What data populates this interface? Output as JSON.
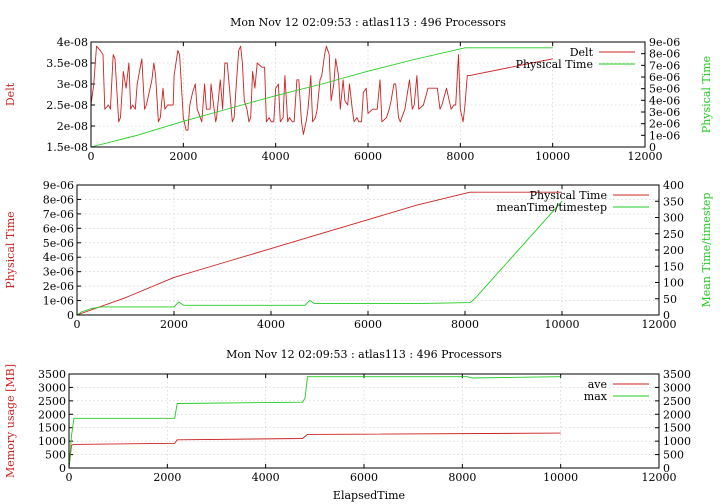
{
  "colors": {
    "red": "#cc2222",
    "green": "#22cc22",
    "grid": "#c8c8c8"
  },
  "chart_data": [
    {
      "type": "line",
      "title": "Mon Nov 12 02:09:53 : atlas113 : 496 Processors",
      "ylabel": "Delt",
      "y2label": "Physical Time",
      "xlim": [
        0,
        12000
      ],
      "ylim": [
        1.5e-08,
        4e-08
      ],
      "y2lim": [
        0,
        9e-06
      ],
      "xticks": [
        "0",
        "2000",
        "4000",
        "6000",
        "8000",
        "10000",
        "12000"
      ],
      "yticks": [
        "1.5e-08",
        "2e-08",
        "2.5e-08",
        "3e-08",
        "3.5e-08",
        "4e-08"
      ],
      "y2ticks": [
        "0",
        "1e-06",
        "2e-06",
        "3e-06",
        "4e-06",
        "5e-06",
        "6e-06",
        "7e-06",
        "8e-06",
        "9e-06"
      ],
      "legend_position": "top-right",
      "series": [
        {
          "name": "Delt",
          "axis": "left",
          "color": "#cc2222",
          "x": [
            0,
            60,
            120,
            200,
            260,
            300,
            380,
            420,
            480,
            520,
            600,
            640,
            700,
            760,
            820,
            860,
            900,
            960,
            1000,
            1100,
            1160,
            1200,
            1280,
            1320,
            1360,
            1400,
            1460,
            1500,
            1560,
            1600,
            1660,
            1700,
            1780,
            1800,
            1880,
            1920,
            2000,
            2060,
            2100,
            2140,
            2200,
            2260,
            2300,
            2400,
            2460,
            2500,
            2580,
            2600,
            2700,
            2720,
            2800,
            2850,
            2900,
            2950,
            3000,
            3060,
            3100,
            3160,
            3200,
            3240,
            3280,
            3320,
            3380,
            3420,
            3460,
            3500,
            3550,
            3600,
            3700,
            3760,
            3800,
            3860,
            3900,
            3960,
            4000,
            4060,
            4100,
            4160,
            4200,
            4260,
            4300,
            4360,
            4400,
            4460,
            4500,
            4560,
            4600,
            4660,
            4700,
            4760,
            4800,
            4860,
            4900,
            4960,
            5000,
            5060,
            5100,
            5160,
            5200,
            5260,
            5300,
            5360,
            5400,
            5460,
            5500,
            5560,
            5600,
            5660,
            5700,
            5760,
            5800,
            5860,
            5900,
            5960,
            6000,
            6100,
            6200,
            6260,
            6300,
            6400,
            6460,
            6500,
            6560,
            6600,
            6660,
            6700,
            6800,
            6900,
            6960,
            7000,
            7060,
            7100,
            7200,
            7300,
            7400,
            7460,
            7500,
            7560,
            7600,
            7700,
            7800,
            7860,
            7900,
            7960,
            8000,
            8060,
            8100,
            8150,
            8200,
            10000
          ],
          "values": [
            2.5e-08,
            3e-08,
            3.9e-08,
            3.8e-08,
            3.7e-08,
            2.4e-08,
            2.5e-08,
            2.4e-08,
            3.7e-08,
            3.6e-08,
            2.1e-08,
            2.2e-08,
            3.3e-08,
            2.9e-08,
            3.5e-08,
            2.4e-08,
            2.5e-08,
            2.4e-08,
            3e-08,
            3.6e-08,
            2.4e-08,
            2.5e-08,
            2.9e-08,
            3.1e-08,
            3.5e-08,
            3.2e-08,
            2.1e-08,
            2.2e-08,
            2.9e-08,
            2.4e-08,
            2.5e-08,
            2.5e-08,
            2.5e-08,
            3.2e-08,
            3.8e-08,
            3.7e-08,
            2.2e-08,
            1.9e-08,
            1.9e-08,
            2.5e-08,
            2.8e-08,
            3e-08,
            2.4e-08,
            2.1e-08,
            3e-08,
            2.4e-08,
            2.4e-08,
            3e-08,
            2.1e-08,
            2.2e-08,
            3.1e-08,
            2.4e-08,
            3.5e-08,
            3.5e-08,
            2.9e-08,
            2.1e-08,
            2.2e-08,
            3.2e-08,
            3.8e-08,
            3.9e-08,
            3.5e-08,
            2.6e-08,
            2.4e-08,
            2.1e-08,
            2.2e-08,
            3.3e-08,
            2.9e-08,
            3.5e-08,
            3.4e-08,
            3.4e-08,
            2.1e-08,
            2.2e-08,
            2.1e-08,
            2.1e-08,
            2.9e-08,
            3e-08,
            2.1e-08,
            2.2e-08,
            3.2e-08,
            2.1e-08,
            2.2e-08,
            2.1e-08,
            2.1e-08,
            3.1e-08,
            3.1e-08,
            2.1e-08,
            1.8e-08,
            2.1e-08,
            2.4e-08,
            3.2e-08,
            2.1e-08,
            2.2e-08,
            2.4e-08,
            3.1e-08,
            3.2e-08,
            3.7e-08,
            3.9e-08,
            3.7e-08,
            2.6e-08,
            3e-08,
            3.6e-08,
            3.2e-08,
            2.4e-08,
            3.1e-08,
            2.6e-08,
            2.5e-08,
            3e-08,
            2.4e-08,
            2.1e-08,
            2.2e-08,
            2.1e-08,
            2.1e-08,
            2.8e-08,
            2.9e-08,
            2.3e-08,
            2.4e-08,
            2.4e-08,
            3.1e-08,
            2.1e-08,
            2.2e-08,
            2.4e-08,
            2.6e-08,
            3e-08,
            3e-08,
            2.2e-08,
            2.1e-08,
            2.4e-08,
            3.1e-08,
            2.4e-08,
            2.5e-08,
            3.2e-08,
            2.4e-08,
            2.5e-08,
            2.9e-08,
            2.9e-08,
            2.9e-08,
            2.9e-08,
            2.4e-08,
            2.5e-08,
            2.9e-08,
            2.4e-08,
            2.5e-08,
            2.5e-08,
            3.7e-08,
            2.4e-08,
            2.1e-08,
            2.5e-08,
            3.2e-08,
            3.2e-08,
            3.6e-08
          ]
        },
        {
          "name": "Physical Time",
          "axis": "right",
          "color": "#22cc22",
          "x": [
            0,
            1000,
            2000,
            3000,
            4000,
            5000,
            6000,
            7000,
            8100,
            10000
          ],
          "values": [
            0,
            1e-06,
            2.2e-06,
            3.3e-06,
            4.4e-06,
            5.4e-06,
            6.5e-06,
            7.5e-06,
            8.5e-06,
            8.5e-06
          ]
        }
      ]
    },
    {
      "type": "line",
      "title": "",
      "ylabel": "Physical Time",
      "y2label": "Mean Time/timestep",
      "xlim": [
        0,
        12000
      ],
      "ylim": [
        0,
        9e-06
      ],
      "y2lim": [
        0,
        400
      ],
      "xticks": [
        "0",
        "2000",
        "4000",
        "6000",
        "8000",
        "10000",
        "12000"
      ],
      "yticks": [
        "0",
        "1e-06",
        "2e-06",
        "3e-06",
        "4e-06",
        "5e-06",
        "6e-06",
        "7e-06",
        "8e-06",
        "9e-06"
      ],
      "y2ticks": [
        "0",
        "50",
        "100",
        "150",
        "200",
        "250",
        "300",
        "350",
        "400"
      ],
      "legend_position": "top-right",
      "series": [
        {
          "name": "Physical Time",
          "axis": "left",
          "color": "#cc2222",
          "x": [
            0,
            1000,
            2000,
            3000,
            4000,
            5000,
            6000,
            7000,
            8100,
            10000
          ],
          "values": [
            0,
            1.2e-06,
            2.6e-06,
            3.6e-06,
            4.6e-06,
            5.6e-06,
            6.6e-06,
            7.6e-06,
            8.5e-06,
            8.5e-06
          ]
        },
        {
          "name": "meanTime/timestep",
          "axis": "right",
          "color": "#22cc22",
          "x": [
            0,
            100,
            300,
            500,
            1000,
            2000,
            2100,
            2200,
            3000,
            4000,
            4700,
            4800,
            4900,
            5000,
            6000,
            7000,
            8100,
            8200,
            10000
          ],
          "values": [
            0,
            10,
            20,
            25,
            25,
            25,
            40,
            30,
            30,
            30,
            30,
            45,
            35,
            35,
            35,
            35,
            38,
            50,
            350
          ]
        }
      ]
    },
    {
      "type": "line",
      "title": "Mon Nov 12 02:09:53 : atlas113 : 496 Processors",
      "xlabel": "ElapsedTime",
      "ylabel": "Memory usage [MB]",
      "xlim": [
        0,
        12000
      ],
      "ylim": [
        0,
        3500
      ],
      "y2lim": [
        0,
        3500
      ],
      "xticks": [
        "0",
        "2000",
        "4000",
        "6000",
        "8000",
        "10000",
        "12000"
      ],
      "yticks": [
        "0",
        "500",
        "1000",
        "1500",
        "2000",
        "2500",
        "3000",
        "3500"
      ],
      "y2ticks": [
        "0",
        "500",
        "1000",
        "1500",
        "2000",
        "2500",
        "3000",
        "3500"
      ],
      "legend_position": "top-right",
      "series": [
        {
          "name": "ave",
          "axis": "left",
          "color": "#cc2222",
          "x": [
            0,
            50,
            100,
            2150,
            2200,
            4750,
            4850,
            10000
          ],
          "values": [
            0,
            850,
            880,
            920,
            1050,
            1100,
            1250,
            1300
          ]
        },
        {
          "name": "max",
          "axis": "left",
          "color": "#22cc22",
          "x": [
            0,
            50,
            100,
            2150,
            2200,
            4750,
            4800,
            4850,
            8100,
            8200,
            10000
          ],
          "values": [
            0,
            1200,
            1850,
            1850,
            2400,
            2450,
            2600,
            3400,
            3400,
            3350,
            3400
          ]
        }
      ]
    }
  ]
}
